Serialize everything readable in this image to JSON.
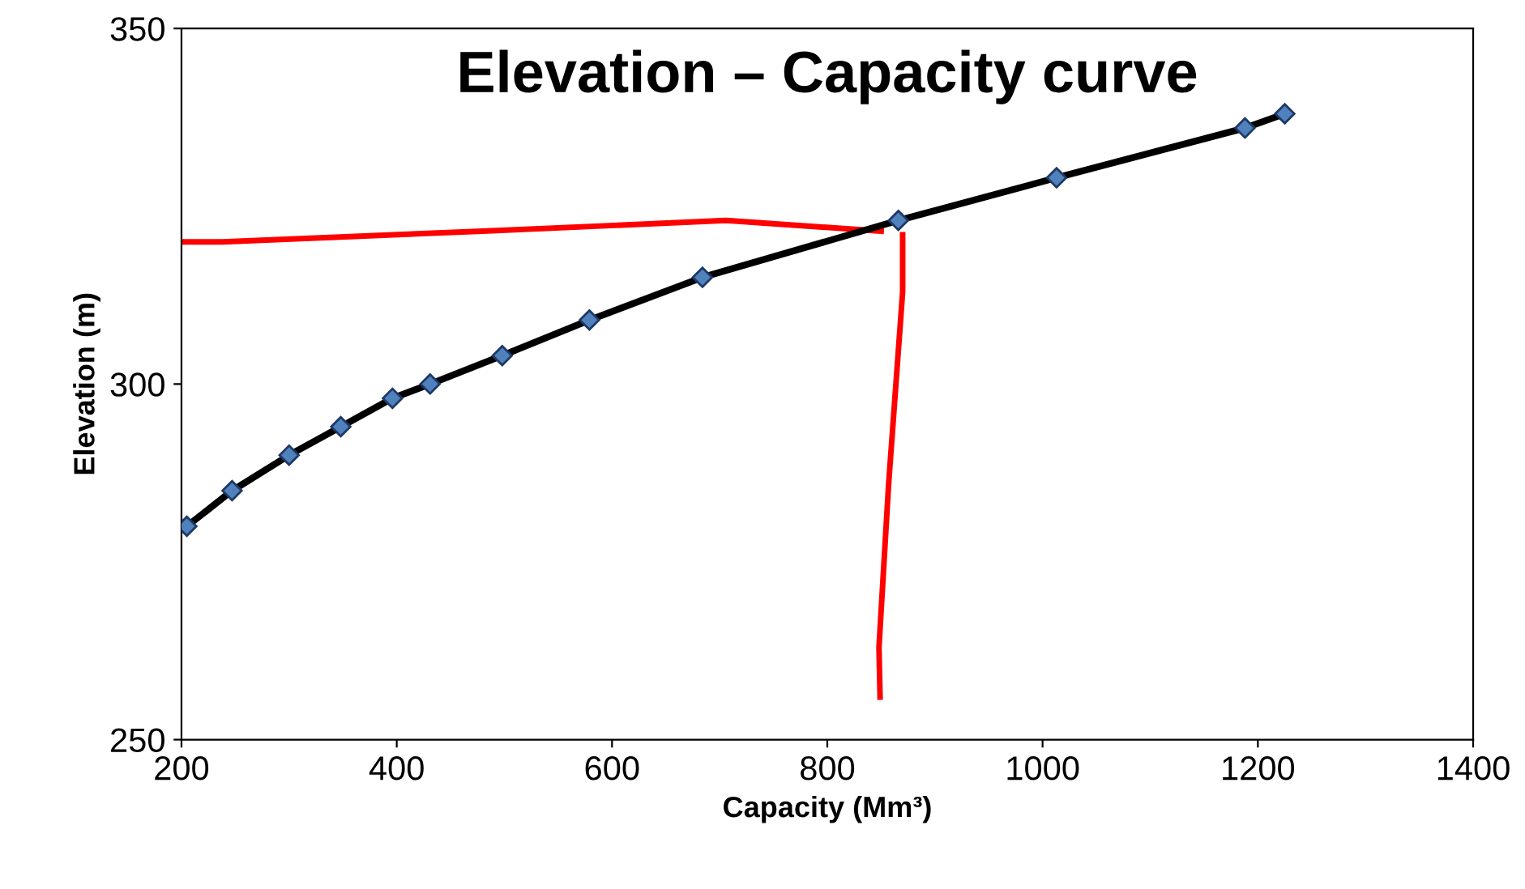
{
  "chart_data": {
    "type": "line",
    "title": "Elevation – Capacity curve",
    "xlabel": "Capacity (Mm³)",
    "ylabel": "Elevation (m)",
    "xlim": [
      200,
      1400
    ],
    "xticks": [
      200,
      400,
      600,
      800,
      1000,
      1200,
      1400
    ],
    "ylim": [
      250,
      350
    ],
    "yticks": [
      250,
      300,
      350
    ],
    "grid": false,
    "legend": false,
    "series": [
      {
        "color": "#000000",
        "marker": "diamond",
        "line_style": "solid",
        "x": [
          205,
          247,
          300,
          348,
          396,
          431,
          498,
          579,
          684,
          866,
          1013,
          1188,
          1225
        ],
        "values": [
          280,
          285,
          290,
          294,
          298,
          300,
          304,
          309,
          315,
          323,
          329,
          336,
          338
        ]
      },
      {
        "color": "#ff0000",
        "marker": "none",
        "line_style": "solid",
        "x": [
          200,
          238,
          480,
          706,
          850
        ],
        "values": [
          320,
          320,
          321.5,
          323,
          321.5
        ]
      },
      {
        "color": "#ff0000",
        "marker": "none",
        "line_style": "solid",
        "x": [
          870,
          870,
          857,
          848,
          849
        ],
        "values": [
          321,
          313,
          286,
          263,
          256
        ]
      }
    ]
  }
}
